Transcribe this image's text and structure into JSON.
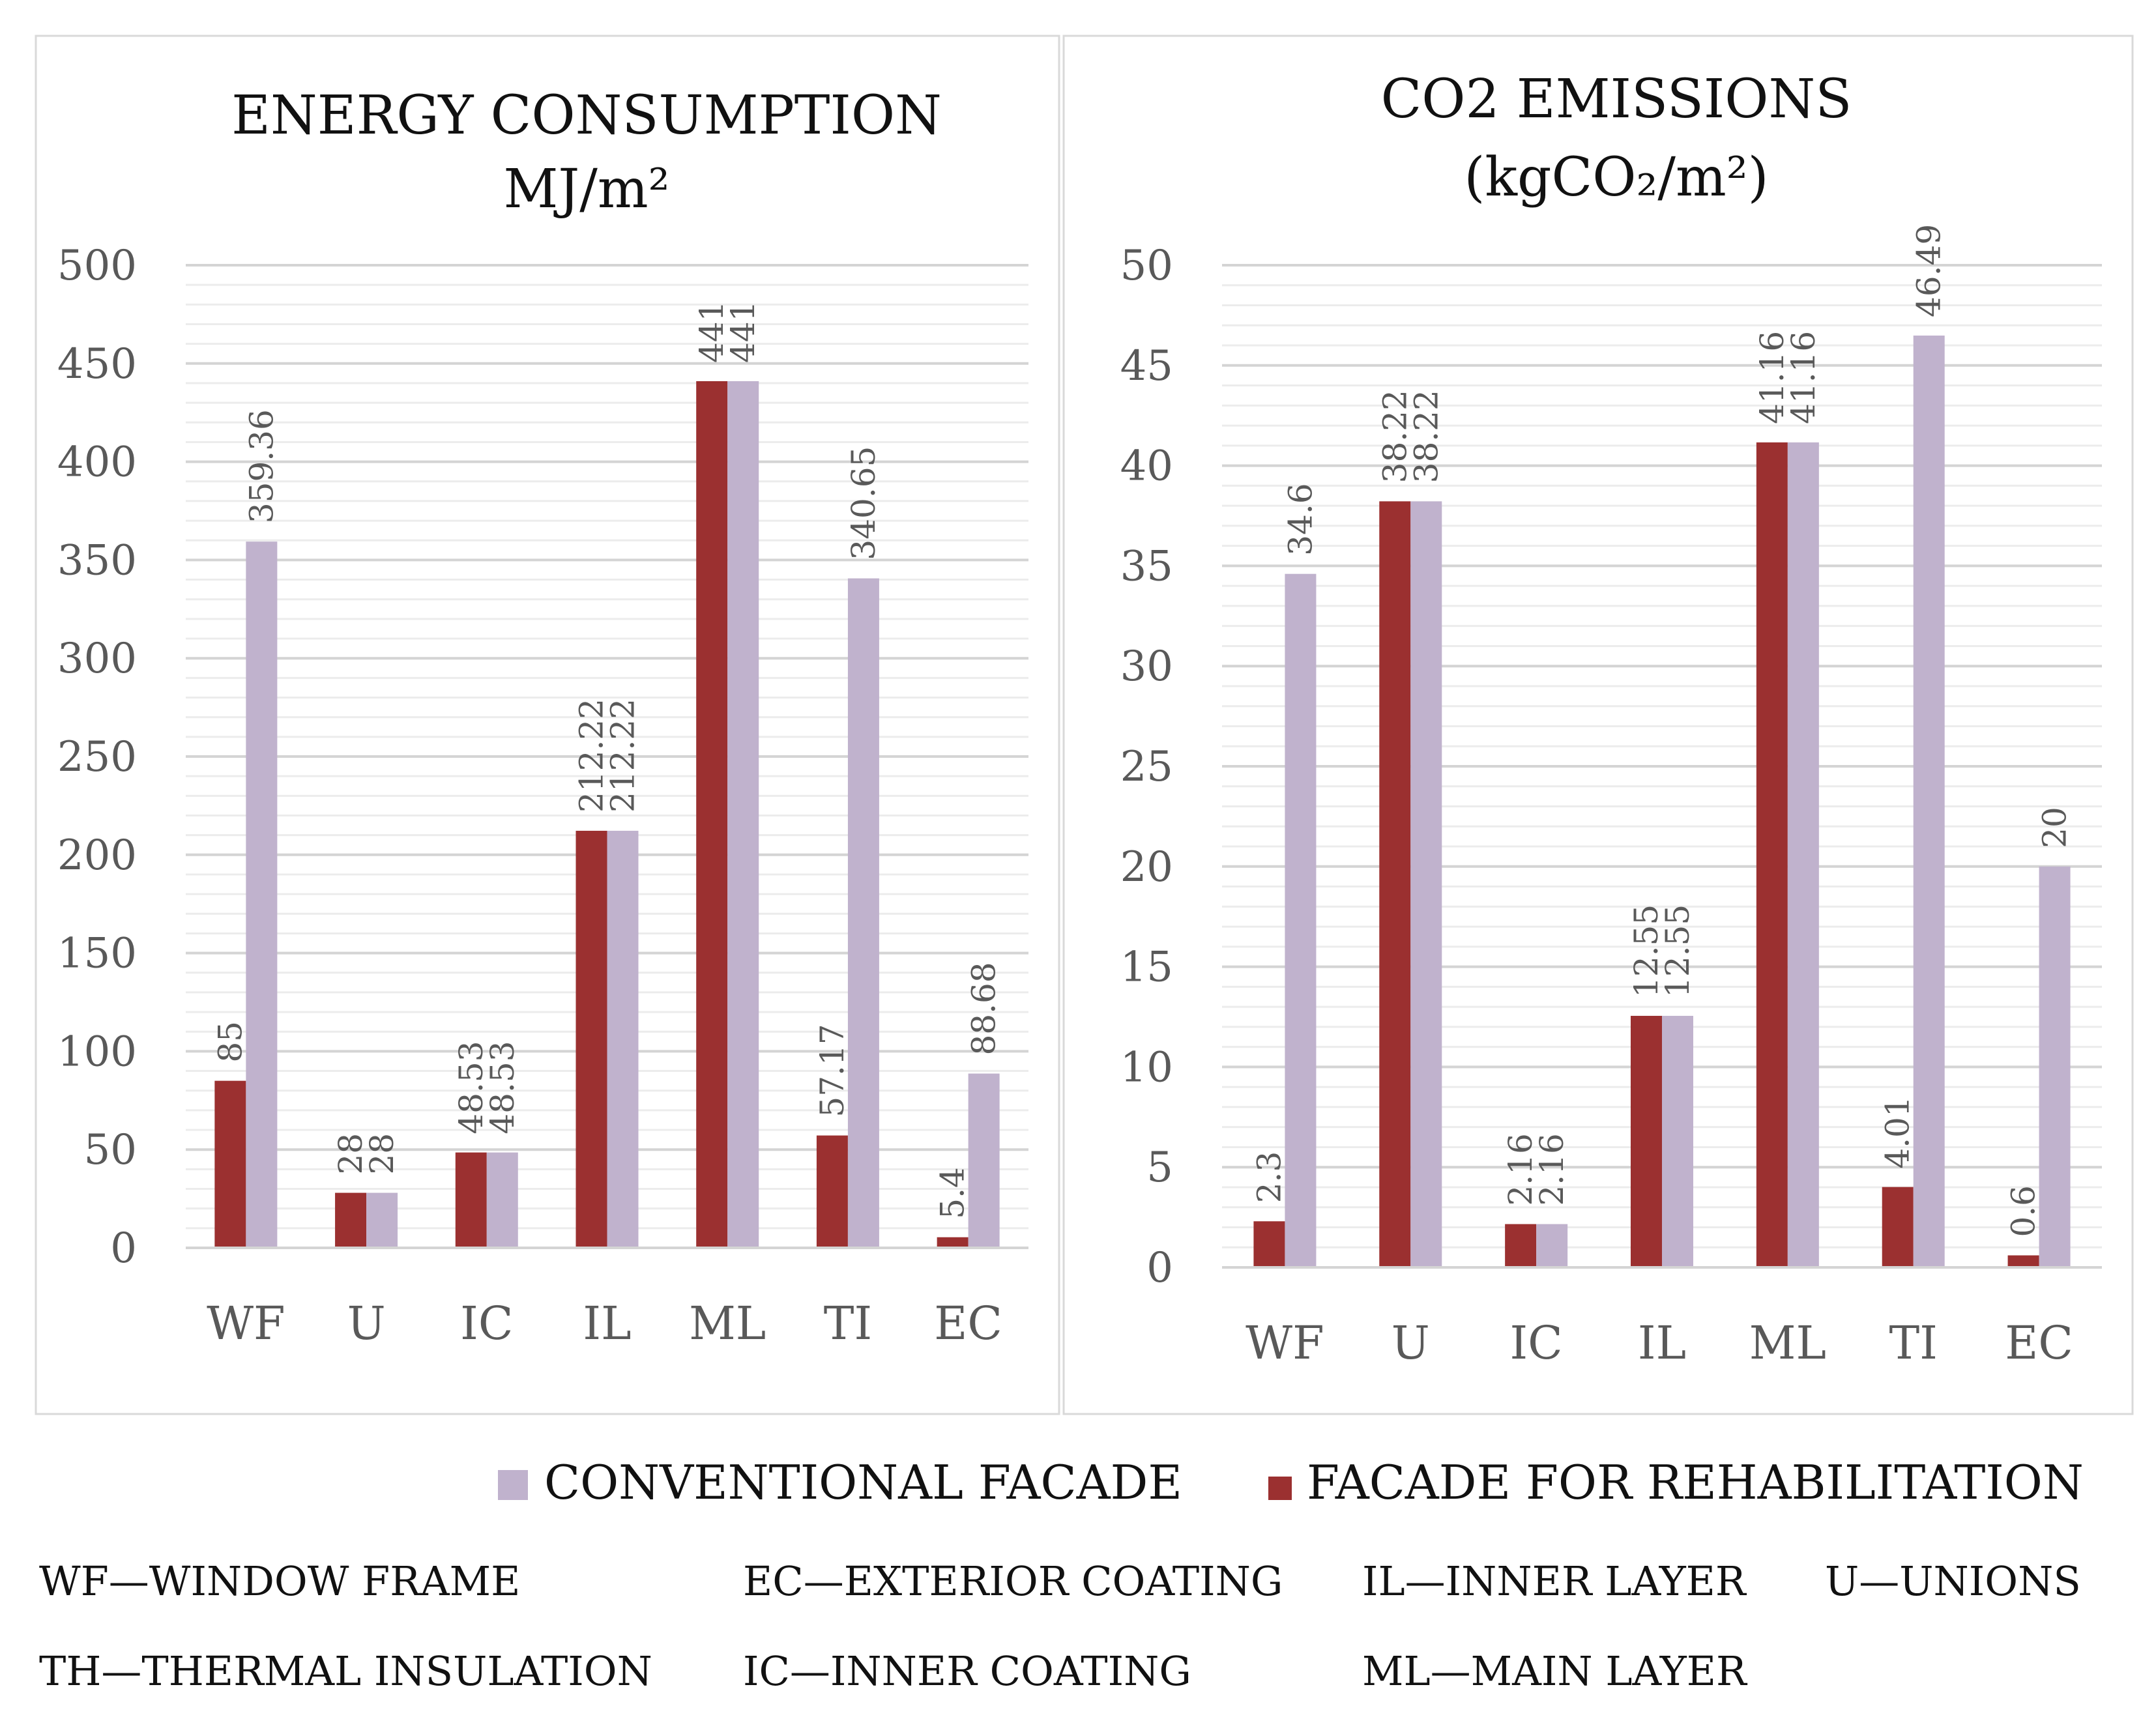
{
  "colors": {
    "rehabilitation": "#9b3030",
    "conventional": "#c0b2cd",
    "grid": "#d9d9d9",
    "axis_text": "#595959",
    "panel_border": "#d9d9d9"
  },
  "chart_data": [
    {
      "type": "bar",
      "title": "ENERGY CONSUMPTION",
      "title_line2": "MJ/m²",
      "categories": [
        "WF",
        "U",
        "IC",
        "IL",
        "ML",
        "TI",
        "EC"
      ],
      "ylim": [
        0,
        500
      ],
      "yticks": [
        0,
        50,
        100,
        150,
        200,
        250,
        300,
        350,
        400,
        450,
        500
      ],
      "ytick_labels": [
        "0",
        "50",
        "100",
        "150",
        "200",
        "250",
        "300",
        "350",
        "400",
        "450",
        "500"
      ],
      "series": [
        {
          "name": "FACADE FOR REHABILITATION",
          "values": [
            85,
            28,
            48.53,
            212.22,
            441,
            57.17,
            5.4
          ],
          "labels": [
            "85",
            "28",
            "48.53",
            "212.22",
            "441",
            "57.17",
            "5.4"
          ]
        },
        {
          "name": "CONVENTIONAL FACADE",
          "values": [
            359.36,
            28,
            48.53,
            212.22,
            441,
            340.65,
            88.68
          ],
          "labels": [
            "359.36",
            "28",
            "48.53",
            "212.22",
            "441",
            "340.65",
            "88.68"
          ]
        }
      ]
    },
    {
      "type": "bar",
      "title": "CO2 EMISSIONS",
      "title_line2": "(kgCO₂/m²)",
      "categories": [
        "WF",
        "U",
        "IC",
        "IL",
        "ML",
        "TI",
        "EC"
      ],
      "ylim": [
        0,
        50
      ],
      "yticks": [
        0,
        5,
        10,
        15,
        20,
        25,
        30,
        35,
        40,
        45,
        50
      ],
      "ytick_labels": [
        "0",
        "5",
        "10",
        "15",
        "20",
        "25",
        "30",
        "35",
        "40",
        "45",
        "50"
      ],
      "series": [
        {
          "name": "FACADE FOR REHABILITATION",
          "values": [
            2.3,
            38.22,
            2.16,
            12.55,
            41.16,
            4.01,
            0.6
          ],
          "labels": [
            "2.3",
            "38.22",
            "2.16",
            "12.55",
            "41.16",
            "4.01",
            "0.6"
          ]
        },
        {
          "name": "CONVENTIONAL FACADE",
          "values": [
            34.6,
            38.22,
            2.16,
            12.55,
            41.16,
            46.49,
            20
          ],
          "labels": [
            "34.6",
            "38.22",
            "2.16",
            "12.55",
            "41.16",
            "46.49",
            "20"
          ]
        }
      ]
    }
  ],
  "legend": {
    "conventional": "CONVENTIONAL FACADE",
    "rehabilitation": "FACADE FOR REHABILITATION"
  },
  "abbreviations": [
    "WF—WINDOW FRAME",
    "EC—EXTERIOR COATING",
    "IL—INNER LAYER",
    "U—UNIONS",
    "TH—THERMAL INSULATION",
    "IC—INNER COATING",
    "ML—MAIN LAYER"
  ]
}
